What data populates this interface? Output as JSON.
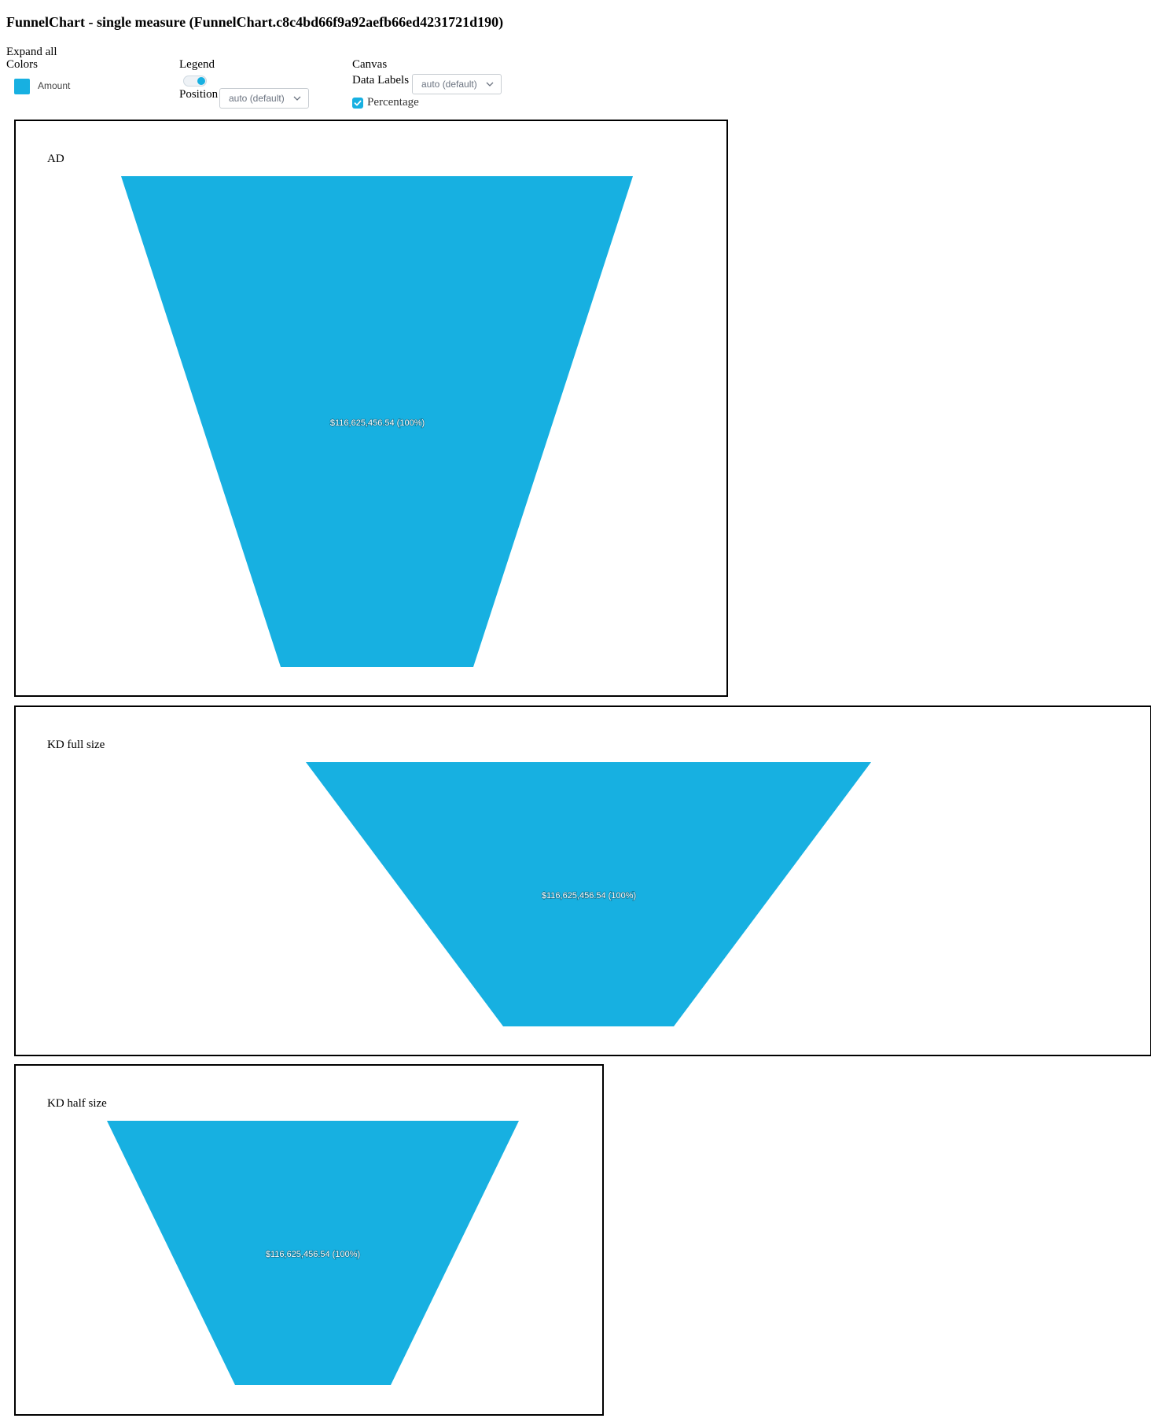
{
  "page_title": "FunnelChart - single measure (FunnelChart.c8c4bd66f9a92aefb66ed4231721d190)",
  "controls": {
    "expand_all": "Expand all",
    "colors": {
      "heading": "Colors",
      "items": [
        {
          "label": "Amount",
          "color": "#17b0e1"
        }
      ]
    },
    "legend": {
      "heading": "Legend",
      "toggle_on": true,
      "position_label": "Position",
      "position_value": "auto (default)"
    },
    "canvas": {
      "heading": "Canvas",
      "data_labels_label": "Data Labels",
      "data_labels_value": "auto (default)",
      "percentage_label": "Percentage",
      "percentage_checked": true
    }
  },
  "accent_color": "#17b0e1",
  "charts": [
    {
      "title": "AD",
      "label": "$116,625,456.54 (100%)"
    },
    {
      "title": "KD full size",
      "label": "$116,625,456.54 (100%)"
    },
    {
      "title": "KD half size",
      "label": "$116,625,456.54 (100%)"
    }
  ],
  "chart_data": [
    {
      "type": "funnel",
      "title": "AD",
      "categories": [
        "Amount"
      ],
      "series": [
        {
          "name": "Amount",
          "values": [
            116625456.54
          ]
        }
      ],
      "data_labels": [
        "$116,625,456.54 (100%)"
      ],
      "legend": "none",
      "color": "#17b0e1"
    },
    {
      "type": "funnel",
      "title": "KD full size",
      "categories": [
        "Amount"
      ],
      "series": [
        {
          "name": "Amount",
          "values": [
            116625456.54
          ]
        }
      ],
      "data_labels": [
        "$116,625,456.54 (100%)"
      ],
      "legend": "none",
      "color": "#17b0e1"
    },
    {
      "type": "funnel",
      "title": "KD half size",
      "categories": [
        "Amount"
      ],
      "series": [
        {
          "name": "Amount",
          "values": [
            116625456.54
          ]
        }
      ],
      "data_labels": [
        "$116,625,456.54 (100%)"
      ],
      "legend": "none",
      "color": "#17b0e1"
    }
  ]
}
